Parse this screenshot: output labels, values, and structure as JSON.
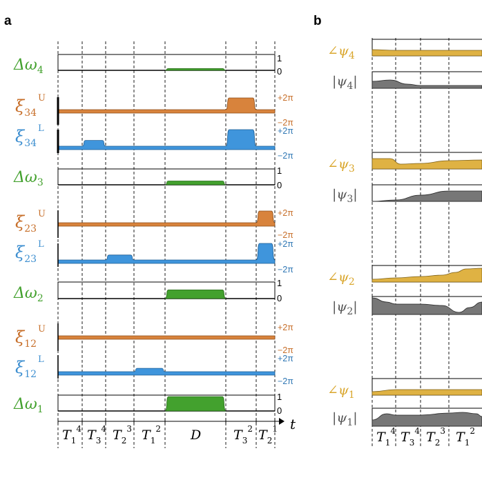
{
  "panels": {
    "a": "a",
    "b": "b"
  },
  "colors": {
    "green": "#43a12e",
    "orange": "#d8833c",
    "orange_text": "#c76f2a",
    "blue": "#3f95dc",
    "blue_text": "#2f77b4",
    "gold": "#dfb243",
    "gray": "#777777"
  },
  "panel_a": {
    "time_axis_label": "t",
    "segments": [
      {
        "T": "T",
        "sub": "1",
        "sup": "4"
      },
      {
        "T": "T",
        "sub": "3",
        "sup": "4"
      },
      {
        "T": "T",
        "sub": "2",
        "sup": "3"
      },
      {
        "T": "T",
        "sub": "1",
        "sup": "2"
      },
      {
        "label": "D"
      },
      {
        "T": "T",
        "sub": "3",
        "sup": "2"
      },
      {
        "T": "T",
        "sub": "2",
        "sup": "1"
      }
    ],
    "rows": [
      {
        "kind": "detuning",
        "symbol": "Δω",
        "sub": "4",
        "tick_top": "1",
        "tick_bottom": "0",
        "pulse": {
          "start_segment": 4,
          "end_segment": 4,
          "level": 0.12
        }
      },
      {
        "kind": "phase_upper",
        "symbol": "ξ",
        "sub": "34",
        "sup": "U",
        "tick_top": "+2π",
        "tick_bottom": "−2π",
        "pulses": [
          {
            "start_segment": 5,
            "end_segment": 5,
            "level": 1.0
          }
        ]
      },
      {
        "kind": "phase_lower",
        "symbol": "ξ",
        "sub": "34",
        "sup": "L",
        "tick_top": "+2π",
        "tick_bottom": "−2π",
        "pulses": [
          {
            "start_segment": 1,
            "end_segment": 1,
            "level": 0.35
          },
          {
            "start_segment": 5,
            "end_segment": 5,
            "level": 1.0
          }
        ]
      },
      {
        "kind": "detuning",
        "symbol": "Δω",
        "sub": "3",
        "tick_top": "1",
        "tick_bottom": "0",
        "pulse": {
          "start_segment": 4,
          "end_segment": 4,
          "level": 0.25
        }
      },
      {
        "kind": "phase_upper",
        "symbol": "ξ",
        "sub": "23",
        "sup": "U",
        "tick_top": "+2π",
        "tick_bottom": "−2π",
        "pulses": [
          {
            "start_segment": 6,
            "end_segment": 6,
            "level": 1.0
          }
        ]
      },
      {
        "kind": "phase_lower",
        "symbol": "ξ",
        "sub": "23",
        "sup": "L",
        "tick_top": "+2π",
        "tick_bottom": "−2π",
        "pulses": [
          {
            "start_segment": 2,
            "end_segment": 2,
            "level": 0.3
          },
          {
            "start_segment": 6,
            "end_segment": 6,
            "level": 1.0
          }
        ]
      },
      {
        "kind": "detuning",
        "symbol": "Δω",
        "sub": "2",
        "tick_top": "1",
        "tick_bottom": "0",
        "pulse": {
          "start_segment": 4,
          "end_segment": 4,
          "level": 0.55
        }
      },
      {
        "kind": "phase_upper",
        "symbol": "ξ",
        "sub": "12",
        "sup": "U",
        "tick_top": "+2π",
        "tick_bottom": "−2π",
        "pulses": []
      },
      {
        "kind": "phase_lower",
        "symbol": "ξ",
        "sub": "12",
        "sup": "L",
        "tick_top": "+2π",
        "tick_bottom": "−2π",
        "pulses": [
          {
            "start_segment": 3,
            "end_segment": 3,
            "level": 0.35
          }
        ]
      },
      {
        "kind": "detuning",
        "symbol": "Δω",
        "sub": "1",
        "tick_top": "1",
        "tick_bottom": "0",
        "pulse": {
          "start_segment": 4,
          "end_segment": 4,
          "level": 0.95
        }
      }
    ]
  },
  "panel_b": {
    "segments": [
      {
        "T": "T",
        "sub": "1",
        "sup": "4"
      },
      {
        "T": "T",
        "sub": "3",
        "sup": "4"
      },
      {
        "T": "T",
        "sub": "2",
        "sup": "3"
      },
      {
        "T": "T",
        "sub": "1",
        "sup": "2"
      }
    ],
    "rows": [
      {
        "kind": "phase",
        "symbol": "∠ψ",
        "sub": "4"
      },
      {
        "kind": "amplitude",
        "symbol": "ψ",
        "sub": "4"
      },
      {
        "kind": "phase",
        "symbol": "∠ψ",
        "sub": "3"
      },
      {
        "kind": "amplitude",
        "symbol": "ψ",
        "sub": "3"
      },
      {
        "kind": "phase",
        "symbol": "∠ψ",
        "sub": "2"
      },
      {
        "kind": "amplitude",
        "symbol": "ψ",
        "sub": "2"
      },
      {
        "kind": "phase",
        "symbol": "∠ψ",
        "sub": "1"
      },
      {
        "kind": "amplitude",
        "symbol": "ψ",
        "sub": "1"
      }
    ]
  }
}
